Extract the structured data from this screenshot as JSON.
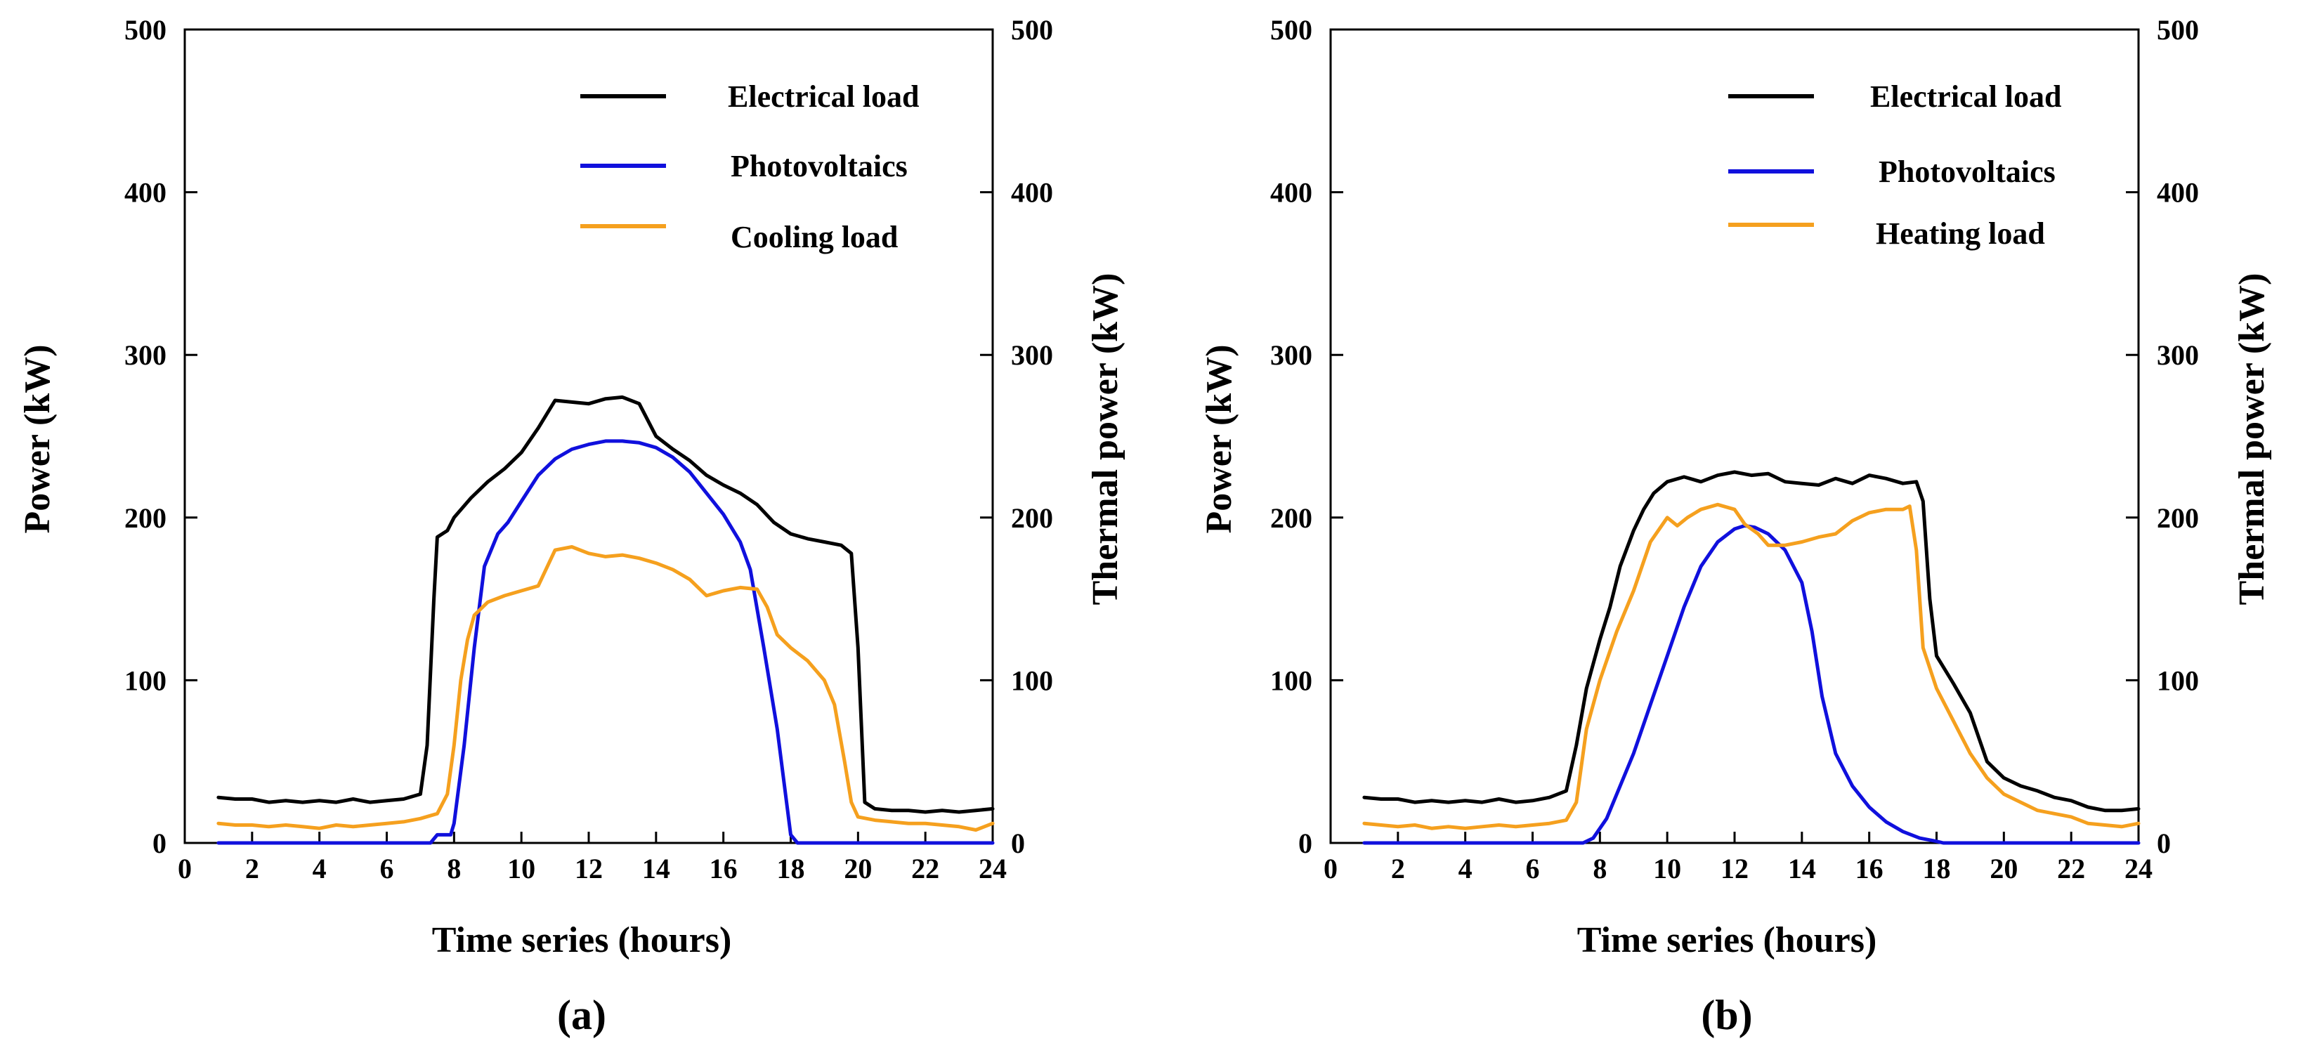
{
  "chart_data": [
    {
      "type": "line",
      "panel_label": "(a)",
      "xlabel": "Time series (hours)",
      "ylabel": "Power (kW)",
      "y2label": "Thermal power (kW)",
      "xlim": [
        0,
        24
      ],
      "ylim": [
        0,
        500
      ],
      "y2lim": [
        0,
        500
      ],
      "xticks": [
        "0",
        "2",
        "4",
        "6",
        "8",
        "10",
        "12",
        "14",
        "16",
        "18",
        "20",
        "22",
        "24"
      ],
      "yticks": [
        "0",
        "100",
        "200",
        "300",
        "400",
        "500"
      ],
      "y2ticks": [
        "0",
        "100",
        "200",
        "300",
        "400",
        "500"
      ],
      "grid": false,
      "legend_position": "top-right",
      "series": [
        {
          "name": "Electrical load",
          "color": "#000000",
          "axis": "left",
          "points": [
            [
              1,
              28
            ],
            [
              1.5,
              27
            ],
            [
              2,
              27
            ],
            [
              2.5,
              25
            ],
            [
              3,
              26
            ],
            [
              3.5,
              25
            ],
            [
              4,
              26
            ],
            [
              4.5,
              25
            ],
            [
              5,
              27
            ],
            [
              5.5,
              25
            ],
            [
              6,
              26
            ],
            [
              6.5,
              27
            ],
            [
              7,
              30
            ],
            [
              7.2,
              60
            ],
            [
              7.4,
              150
            ],
            [
              7.5,
              188
            ],
            [
              7.8,
              192
            ],
            [
              8,
              200
            ],
            [
              8.5,
              212
            ],
            [
              9,
              222
            ],
            [
              9.5,
              230
            ],
            [
              10,
              240
            ],
            [
              10.5,
              255
            ],
            [
              11,
              272
            ],
            [
              11.5,
              271
            ],
            [
              12,
              270
            ],
            [
              12.5,
              273
            ],
            [
              13,
              274
            ],
            [
              13.5,
              270
            ],
            [
              14,
              250
            ],
            [
              14.5,
              242
            ],
            [
              15,
              235
            ],
            [
              15.5,
              226
            ],
            [
              16,
              220
            ],
            [
              16.5,
              215
            ],
            [
              17,
              208
            ],
            [
              17.5,
              197
            ],
            [
              18,
              190
            ],
            [
              18.5,
              187
            ],
            [
              19,
              185
            ],
            [
              19.5,
              183
            ],
            [
              19.8,
              178
            ],
            [
              20,
              120
            ],
            [
              20.2,
              25
            ],
            [
              20.5,
              21
            ],
            [
              21,
              20
            ],
            [
              21.5,
              20
            ],
            [
              22,
              19
            ],
            [
              22.5,
              20
            ],
            [
              23,
              19
            ],
            [
              23.5,
              20
            ],
            [
              24,
              21
            ]
          ]
        },
        {
          "name": "Photovoltaics",
          "color": "#1010DD",
          "axis": "left",
          "points": [
            [
              1,
              0
            ],
            [
              7.3,
              0
            ],
            [
              7.5,
              5
            ],
            [
              7.9,
              5
            ],
            [
              8,
              12
            ],
            [
              8.3,
              60
            ],
            [
              8.6,
              120
            ],
            [
              8.9,
              170
            ],
            [
              9.3,
              190
            ],
            [
              9.6,
              197
            ],
            [
              10,
              210
            ],
            [
              10.5,
              226
            ],
            [
              11,
              236
            ],
            [
              11.5,
              242
            ],
            [
              12,
              245
            ],
            [
              12.5,
              247
            ],
            [
              13,
              247
            ],
            [
              13.5,
              246
            ],
            [
              14,
              243
            ],
            [
              14.5,
              237
            ],
            [
              15,
              228
            ],
            [
              15.5,
              215
            ],
            [
              16,
              202
            ],
            [
              16.5,
              185
            ],
            [
              16.8,
              168
            ],
            [
              17.2,
              120
            ],
            [
              17.6,
              70
            ],
            [
              18,
              5
            ],
            [
              18.2,
              0
            ],
            [
              24,
              0
            ]
          ]
        },
        {
          "name": "Cooling load",
          "color": "#F5A01E",
          "axis": "right",
          "points": [
            [
              1,
              12
            ],
            [
              1.5,
              11
            ],
            [
              2,
              11
            ],
            [
              2.5,
              10
            ],
            [
              3,
              11
            ],
            [
              3.5,
              10
            ],
            [
              4,
              9
            ],
            [
              4.5,
              11
            ],
            [
              5,
              10
            ],
            [
              5.5,
              11
            ],
            [
              6,
              12
            ],
            [
              6.5,
              13
            ],
            [
              7,
              15
            ],
            [
              7.5,
              18
            ],
            [
              7.8,
              30
            ],
            [
              8,
              60
            ],
            [
              8.2,
              100
            ],
            [
              8.4,
              125
            ],
            [
              8.6,
              140
            ],
            [
              9,
              148
            ],
            [
              9.5,
              152
            ],
            [
              10,
              155
            ],
            [
              10.5,
              158
            ],
            [
              11,
              180
            ],
            [
              11.5,
              182
            ],
            [
              12,
              178
            ],
            [
              12.5,
              176
            ],
            [
              13,
              177
            ],
            [
              13.5,
              175
            ],
            [
              14,
              172
            ],
            [
              14.5,
              168
            ],
            [
              15,
              162
            ],
            [
              15.5,
              152
            ],
            [
              16,
              155
            ],
            [
              16.5,
              157
            ],
            [
              17,
              156
            ],
            [
              17.3,
              145
            ],
            [
              17.6,
              128
            ],
            [
              18,
              120
            ],
            [
              18.5,
              112
            ],
            [
              19,
              100
            ],
            [
              19.3,
              85
            ],
            [
              19.6,
              50
            ],
            [
              19.8,
              25
            ],
            [
              20,
              16
            ],
            [
              20.5,
              14
            ],
            [
              21,
              13
            ],
            [
              21.5,
              12
            ],
            [
              22,
              12
            ],
            [
              22.5,
              11
            ],
            [
              23,
              10
            ],
            [
              23.5,
              8
            ],
            [
              24,
              12
            ]
          ]
        }
      ]
    },
    {
      "type": "line",
      "panel_label": "(b)",
      "xlabel": "Time series (hours)",
      "ylabel": "Power (kW)",
      "y2label": "Thermal power (kW)",
      "xlim": [
        0,
        24
      ],
      "ylim": [
        0,
        500
      ],
      "y2lim": [
        0,
        500
      ],
      "xticks": [
        "0",
        "2",
        "4",
        "6",
        "8",
        "10",
        "12",
        "14",
        "16",
        "18",
        "20",
        "22",
        "24"
      ],
      "yticks": [
        "0",
        "100",
        "200",
        "300",
        "400",
        "500"
      ],
      "y2ticks": [
        "0",
        "100",
        "200",
        "300",
        "400",
        "500"
      ],
      "grid": false,
      "legend_position": "top-right",
      "series": [
        {
          "name": "Electrical load",
          "color": "#000000",
          "axis": "left",
          "points": [
            [
              1,
              28
            ],
            [
              1.5,
              27
            ],
            [
              2,
              27
            ],
            [
              2.5,
              25
            ],
            [
              3,
              26
            ],
            [
              3.5,
              25
            ],
            [
              4,
              26
            ],
            [
              4.5,
              25
            ],
            [
              5,
              27
            ],
            [
              5.5,
              25
            ],
            [
              6,
              26
            ],
            [
              6.5,
              28
            ],
            [
              7,
              32
            ],
            [
              7.3,
              60
            ],
            [
              7.6,
              95
            ],
            [
              8,
              125
            ],
            [
              8.3,
              145
            ],
            [
              8.6,
              170
            ],
            [
              9,
              192
            ],
            [
              9.3,
              205
            ],
            [
              9.6,
              215
            ],
            [
              10,
              222
            ],
            [
              10.5,
              225
            ],
            [
              11,
              222
            ],
            [
              11.5,
              226
            ],
            [
              12,
              228
            ],
            [
              12.5,
              226
            ],
            [
              13,
              227
            ],
            [
              13.5,
              222
            ],
            [
              14,
              221
            ],
            [
              14.5,
              220
            ],
            [
              15,
              224
            ],
            [
              15.5,
              221
            ],
            [
              16,
              226
            ],
            [
              16.5,
              224
            ],
            [
              17,
              221
            ],
            [
              17.4,
              222
            ],
            [
              17.6,
              210
            ],
            [
              17.8,
              150
            ],
            [
              18,
              115
            ],
            [
              18.5,
              98
            ],
            [
              19,
              80
            ],
            [
              19.5,
              50
            ],
            [
              20,
              40
            ],
            [
              20.5,
              35
            ],
            [
              21,
              32
            ],
            [
              21.5,
              28
            ],
            [
              22,
              26
            ],
            [
              22.5,
              22
            ],
            [
              23,
              20
            ],
            [
              23.5,
              20
            ],
            [
              24,
              21
            ]
          ]
        },
        {
          "name": "Photovoltaics",
          "color": "#1010DD",
          "axis": "left",
          "points": [
            [
              1,
              0
            ],
            [
              7.5,
              0
            ],
            [
              7.8,
              3
            ],
            [
              8.2,
              15
            ],
            [
              8.6,
              35
            ],
            [
              9,
              55
            ],
            [
              9.5,
              85
            ],
            [
              10,
              115
            ],
            [
              10.5,
              145
            ],
            [
              11,
              170
            ],
            [
              11.5,
              185
            ],
            [
              12,
              193
            ],
            [
              12.3,
              195
            ],
            [
              12.6,
              194
            ],
            [
              13,
              190
            ],
            [
              13.5,
              180
            ],
            [
              14,
              160
            ],
            [
              14.3,
              130
            ],
            [
              14.6,
              90
            ],
            [
              15,
              55
            ],
            [
              15.5,
              35
            ],
            [
              16,
              22
            ],
            [
              16.5,
              13
            ],
            [
              17,
              7
            ],
            [
              17.5,
              3
            ],
            [
              18,
              1
            ],
            [
              18.2,
              0
            ],
            [
              24,
              0
            ]
          ]
        },
        {
          "name": "Heating load",
          "color": "#F5A01E",
          "axis": "right",
          "points": [
            [
              1,
              12
            ],
            [
              1.5,
              11
            ],
            [
              2,
              10
            ],
            [
              2.5,
              11
            ],
            [
              3,
              9
            ],
            [
              3.5,
              10
            ],
            [
              4,
              9
            ],
            [
              4.5,
              10
            ],
            [
              5,
              11
            ],
            [
              5.5,
              10
            ],
            [
              6,
              11
            ],
            [
              6.5,
              12
            ],
            [
              7,
              14
            ],
            [
              7.3,
              25
            ],
            [
              7.6,
              70
            ],
            [
              8,
              100
            ],
            [
              8.5,
              130
            ],
            [
              9,
              155
            ],
            [
              9.5,
              185
            ],
            [
              10,
              200
            ],
            [
              10.3,
              195
            ],
            [
              10.6,
              200
            ],
            [
              11,
              205
            ],
            [
              11.5,
              208
            ],
            [
              12,
              205
            ],
            [
              12.3,
              196
            ],
            [
              12.7,
              190
            ],
            [
              13,
              183
            ],
            [
              13.5,
              183
            ],
            [
              14,
              185
            ],
            [
              14.5,
              188
            ],
            [
              15,
              190
            ],
            [
              15.5,
              198
            ],
            [
              16,
              203
            ],
            [
              16.5,
              205
            ],
            [
              17,
              205
            ],
            [
              17.2,
              207
            ],
            [
              17.4,
              180
            ],
            [
              17.6,
              120
            ],
            [
              18,
              95
            ],
            [
              18.5,
              75
            ],
            [
              19,
              55
            ],
            [
              19.5,
              40
            ],
            [
              20,
              30
            ],
            [
              20.5,
              25
            ],
            [
              21,
              20
            ],
            [
              21.5,
              18
            ],
            [
              22,
              16
            ],
            [
              22.5,
              12
            ],
            [
              23,
              11
            ],
            [
              23.5,
              10
            ],
            [
              24,
              12
            ]
          ]
        }
      ]
    }
  ]
}
